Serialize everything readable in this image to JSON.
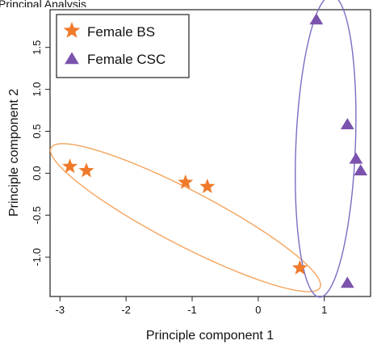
{
  "chart_data": {
    "type": "scatter",
    "title": "",
    "xlabel": "Principle component 1",
    "ylabel": "Principle component 2",
    "xlim": [
      -3.15,
      1.7
    ],
    "ylim": [
      -1.47,
      1.95
    ],
    "x_ticks": [
      -3,
      -2,
      -1,
      0,
      1
    ],
    "y_ticks": [
      -1.0,
      -0.5,
      0.0,
      0.5,
      1.0,
      1.5
    ],
    "x_tick_labels": [
      "-3",
      "-2",
      "-1",
      "0",
      "1"
    ],
    "y_tick_labels": [
      "-1.0",
      "-0.5",
      "0.0",
      "0.5",
      "1.0",
      "1.5"
    ],
    "grid": false,
    "legend_position": "top-left",
    "series": [
      {
        "name": "Female BS",
        "marker": "star",
        "color": "#f07a2a",
        "points": [
          {
            "x": -2.85,
            "y": 0.08
          },
          {
            "x": -2.6,
            "y": 0.03
          },
          {
            "x": -1.1,
            "y": -0.11
          },
          {
            "x": -0.77,
            "y": -0.16
          },
          {
            "x": 0.63,
            "y": -1.13
          }
        ]
      },
      {
        "name": "Female CSC",
        "marker": "triangle",
        "color": "#7b52ad",
        "points": [
          {
            "x": 0.88,
            "y": 1.83
          },
          {
            "x": 1.35,
            "y": 0.58
          },
          {
            "x": 1.48,
            "y": 0.17
          },
          {
            "x": 1.55,
            "y": 0.03
          },
          {
            "x": 1.35,
            "y": -1.31
          }
        ]
      }
    ],
    "ellipses": [
      {
        "series": "Female BS",
        "color": "#f5a45d",
        "center_x": -1.1,
        "center_y": -0.53,
        "semi_major": 2.2,
        "semi_minor": 0.34,
        "angle_deg": -22
      },
      {
        "series": "Female CSC",
        "color": "#7b6cc2",
        "center_x": 1.02,
        "center_y": 0.32,
        "semi_major": 1.8,
        "semi_minor": 0.45,
        "angle_deg": 87
      }
    ]
  },
  "header_fragment": "Principal Analysis"
}
